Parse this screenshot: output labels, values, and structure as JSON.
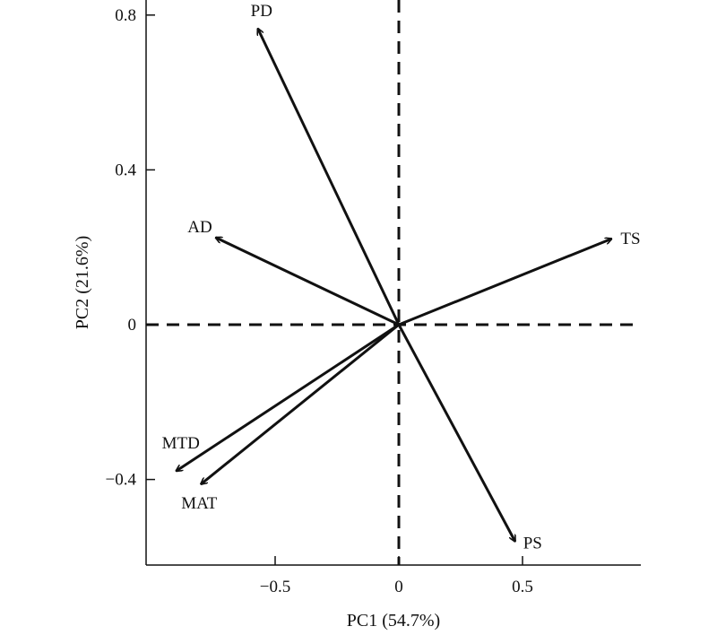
{
  "chart_data": {
    "type": "biplot",
    "title": "",
    "xlabel": "PC1 (54.7%)",
    "ylabel": "PC2 (21.6%)",
    "xlim": [
      -0.97,
      0.95
    ],
    "ylim": [
      -0.62,
      0.82
    ],
    "xticks": [
      {
        "value": -0.5,
        "label": "−0.5"
      },
      {
        "value": 0,
        "label": "0"
      },
      {
        "value": 0.5,
        "label": "0.5"
      }
    ],
    "yticks": [
      {
        "value": 0.8,
        "label": "0.8"
      },
      {
        "value": 0.4,
        "label": "0.4"
      },
      {
        "value": 0,
        "label": "0"
      },
      {
        "value": -0.4,
        "label": "−0.4"
      }
    ],
    "reference_lines": {
      "x0": true,
      "y0": true,
      "style": "dashed"
    },
    "grid": false,
    "legend": "none",
    "vectors": [
      {
        "name": "PD",
        "x": -0.57,
        "y": 0.765
      },
      {
        "name": "AD",
        "x": -0.74,
        "y": 0.225
      },
      {
        "name": "TS",
        "x": 0.86,
        "y": 0.222
      },
      {
        "name": "MTD",
        "x": -0.9,
        "y": -0.378
      },
      {
        "name": "MAT",
        "x": -0.8,
        "y": -0.412
      },
      {
        "name": "PS",
        "x": 0.47,
        "y": -0.56
      }
    ],
    "colors": {
      "ink": "#111111",
      "background": "#ffffff"
    }
  }
}
